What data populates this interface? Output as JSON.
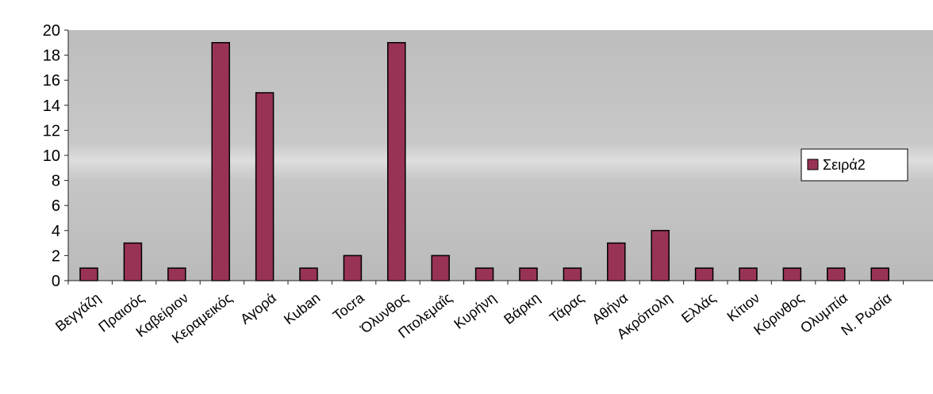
{
  "chart_data": {
    "type": "bar",
    "categories": [
      "Βεγγάζη",
      "Πραισός",
      "Καβείριον",
      "Κεραμεικός",
      "Αγορά",
      "Kuban",
      "Tocra",
      "Όλυνθος",
      "Πτολεμαΐς",
      "Κυρήνη",
      "Βάρκη",
      "Τάρας",
      "Αθήνα",
      "Ακρόπολη",
      "Ελλάς",
      "Κίτιον",
      "Κόρινθος",
      "Ολυμπία",
      "Ν. Ρωσία"
    ],
    "series": [
      {
        "name": "Σειρά2",
        "values": [
          1,
          3,
          1,
          19,
          15,
          1,
          2,
          19,
          2,
          1,
          1,
          1,
          3,
          4,
          1,
          1,
          1,
          1,
          1
        ]
      }
    ],
    "ylim": [
      0,
      20
    ],
    "yticks": [
      "0",
      "2",
      "4",
      "6",
      "8",
      "10",
      "12",
      "14",
      "16",
      "18",
      "20"
    ],
    "grid": false,
    "legend_position": "right",
    "colors": {
      "bar_fill": "#993355",
      "bar_stroke": "#000000",
      "plot_background": "#c0c0c0",
      "legend_background": "#ffffff"
    }
  }
}
